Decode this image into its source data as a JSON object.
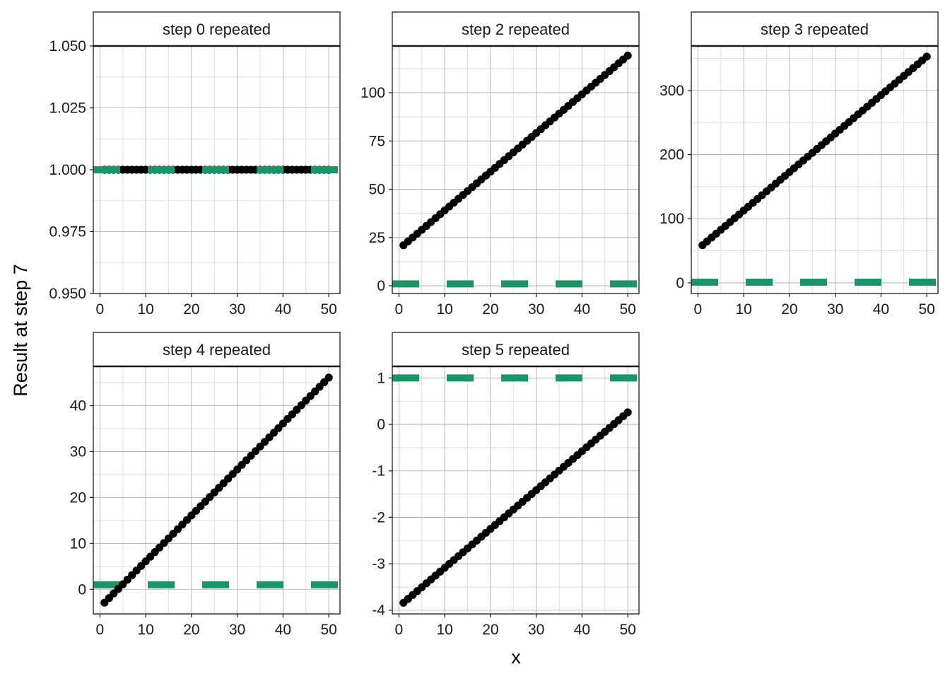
{
  "figure": {
    "xlabel": "x",
    "ylabel": "Result at step 7"
  },
  "colors": {
    "points": "#000000",
    "reference_line": "#1b9468",
    "grid_major": "#a6a6a6",
    "grid_minor": "#d9d9d9",
    "frame": "#1a1a1a"
  },
  "chart_data": [
    {
      "type": "scatter",
      "title": "step 0 repeated",
      "x_range": [
        1,
        50
      ],
      "y_line": [
        1.0,
        1.0
      ],
      "reference_y": 1,
      "xlim": [
        -1.45,
        52.45
      ],
      "ylim": [
        0.95,
        1.05
      ],
      "x_ticks": [
        0,
        10,
        20,
        30,
        40,
        50
      ],
      "y_ticks": [
        0.95,
        0.975,
        1.0,
        1.025,
        1.05
      ],
      "y_tick_labels": [
        "0.950",
        "0.975",
        "1.000",
        "1.025",
        "1.050"
      ]
    },
    {
      "type": "scatter",
      "title": "step 2 repeated",
      "x_range": [
        1,
        50
      ],
      "y_line": [
        21,
        119.2
      ],
      "reference_y": 1,
      "xlim": [
        -1.45,
        52.45
      ],
      "ylim": [
        -4.0,
        124.2
      ],
      "x_ticks": [
        0,
        10,
        20,
        30,
        40,
        50
      ],
      "y_ticks": [
        0,
        25,
        50,
        75,
        100
      ],
      "y_tick_labels": [
        "0",
        "25",
        "50",
        "75",
        "100"
      ]
    },
    {
      "type": "scatter",
      "title": "step 3 repeated",
      "x_range": [
        1,
        50
      ],
      "y_line": [
        58.7,
        352.7
      ],
      "reference_y": 1,
      "xlim": [
        -1.45,
        52.45
      ],
      "ylim": [
        -16.6,
        369.3
      ],
      "x_ticks": [
        0,
        10,
        20,
        30,
        40,
        50
      ],
      "y_ticks": [
        0,
        100,
        200,
        300
      ],
      "y_tick_labels": [
        "0",
        "100",
        "200",
        "300"
      ]
    },
    {
      "type": "scatter",
      "title": "step 4 repeated",
      "x_range": [
        1,
        50
      ],
      "y_line": [
        -2.9,
        46.1
      ],
      "reference_y": 1,
      "xlim": [
        -1.45,
        52.45
      ],
      "ylim": [
        -5.35,
        48.55
      ],
      "x_ticks": [
        0,
        10,
        20,
        30,
        40,
        50
      ],
      "y_ticks": [
        0,
        10,
        20,
        30,
        40
      ],
      "y_tick_labels": [
        "0",
        "10",
        "20",
        "30",
        "40"
      ]
    },
    {
      "type": "scatter",
      "title": "step 5 repeated",
      "x_range": [
        1,
        50
      ],
      "y_line": [
        -3.84,
        0.26
      ],
      "reference_y": 1,
      "xlim": [
        -1.45,
        52.45
      ],
      "ylim": [
        -4.08,
        1.25
      ],
      "x_ticks": [
        0,
        10,
        20,
        30,
        40,
        50
      ],
      "y_ticks": [
        -4,
        -3,
        -2,
        -1,
        0,
        1
      ],
      "y_tick_labels": [
        "-4",
        "-3",
        "-2",
        "-1",
        "0",
        "1"
      ]
    }
  ]
}
